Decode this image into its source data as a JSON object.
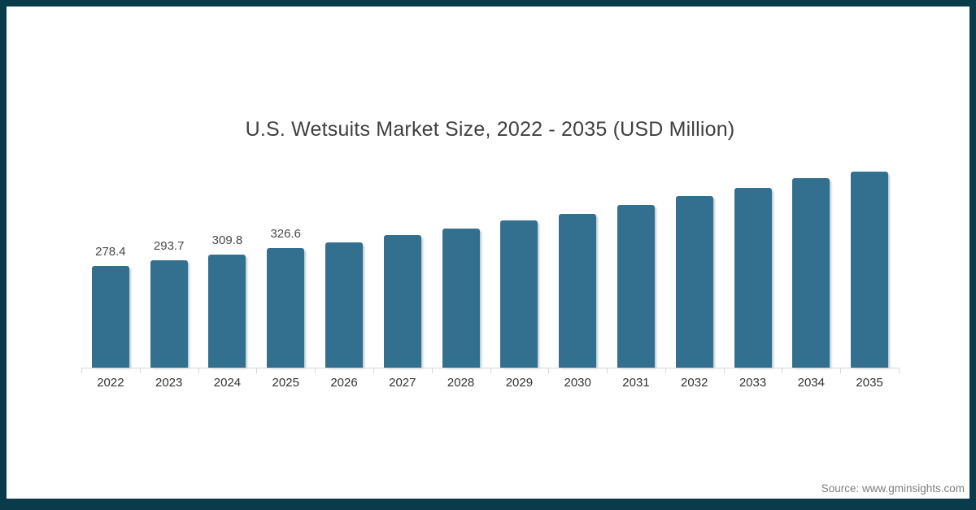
{
  "title": "U.S. Wetsuits Market Size, 2022 - 2035 (USD Million)",
  "source": "Source: www.gminsights.com",
  "colors": {
    "bar": "#33708f",
    "frame": "#0a3b4a",
    "title_text": "#404040",
    "axis_line": "#d6d6d6",
    "x_label_text": "#333333",
    "data_label_text": "#484848",
    "source_text": "#7f7f7f",
    "background": "#ffffff"
  },
  "chart_data": {
    "type": "bar",
    "title": "U.S. Wetsuits Market Size, 2022 - 2035 (USD Million)",
    "xlabel": "",
    "ylabel": "",
    "categories": [
      "2022",
      "2023",
      "2024",
      "2025",
      "2026",
      "2027",
      "2028",
      "2029",
      "2030",
      "2031",
      "2032",
      "2033",
      "2034",
      "2035"
    ],
    "values": [
      278.4,
      293.7,
      309.8,
      326.6,
      344,
      363,
      381,
      403,
      422,
      446,
      470,
      492,
      519,
      537
    ],
    "data_labels": [
      "278.4",
      "293.7",
      "309.8",
      "326.6",
      "",
      "",
      "",
      "",
      "",
      "",
      "",
      "",
      "",
      ""
    ],
    "ylim": [
      0,
      560
    ],
    "grid": false,
    "legend": null,
    "bar_color": "#33708f"
  }
}
